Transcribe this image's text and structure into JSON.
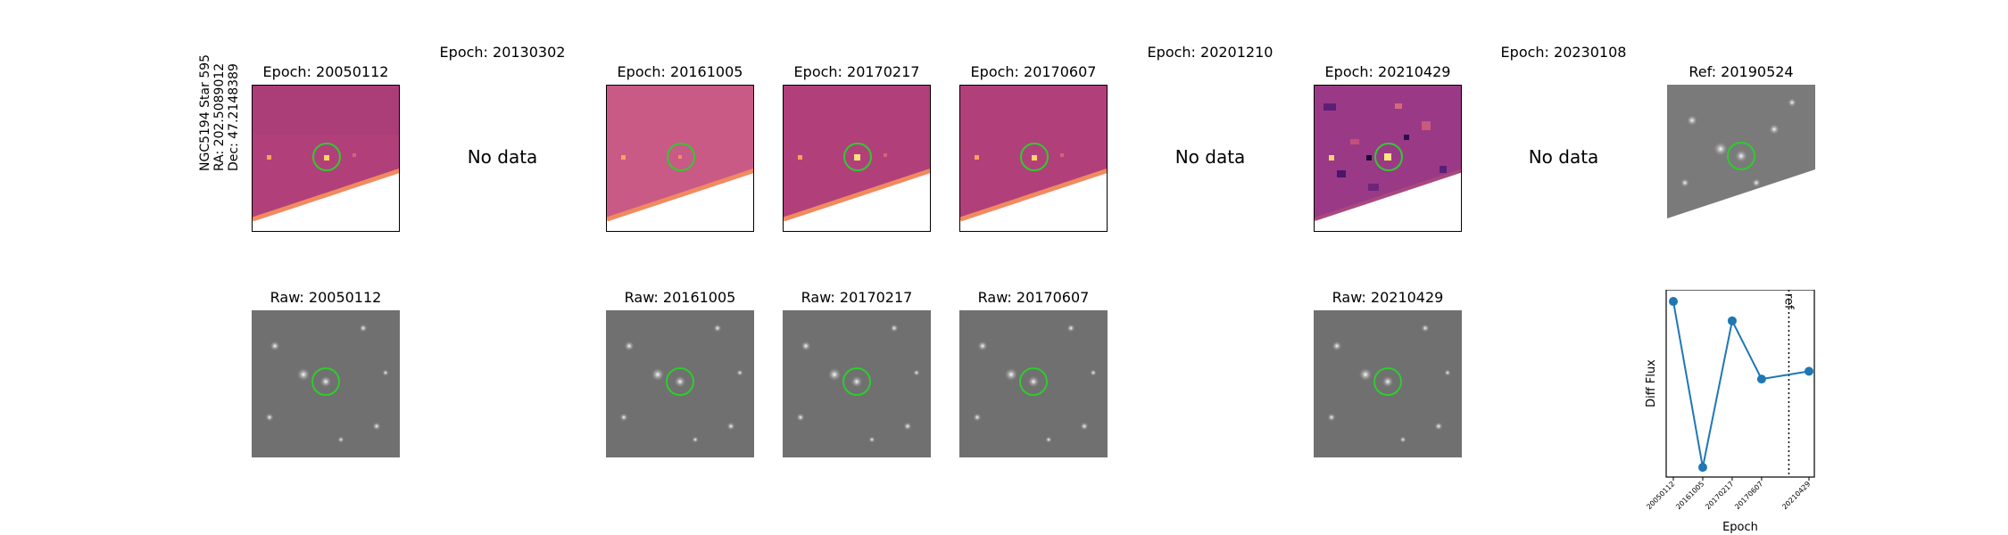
{
  "row_label": [
    "NGC5194 Star 595",
    "RA: 202.5089012",
    "Dec: 47.2148389"
  ],
  "top_row": [
    {
      "title": "Epoch: 20050112",
      "status": "image",
      "variant": "normal"
    },
    {
      "title": "Epoch: 20130302",
      "status": "no-data",
      "message": "No data"
    },
    {
      "title": "Epoch: 20161005",
      "status": "image",
      "variant": "faint"
    },
    {
      "title": "Epoch: 20170217",
      "status": "image",
      "variant": "normal"
    },
    {
      "title": "Epoch: 20170607",
      "status": "image",
      "variant": "normal"
    },
    {
      "title": "Epoch: 20201210",
      "status": "no-data",
      "message": "No data"
    },
    {
      "title": "Epoch: 20210429",
      "status": "image",
      "variant": "noisy"
    },
    {
      "title": "Epoch: 20230108",
      "status": "no-data",
      "message": "No data"
    },
    {
      "title": "Ref: 20190524",
      "status": "reference"
    }
  ],
  "bottom_row": [
    {
      "title": "Raw: 20050112",
      "status": "image"
    },
    {
      "title": "",
      "status": "empty"
    },
    {
      "title": "Raw: 20161005",
      "status": "image"
    },
    {
      "title": "Raw: 20170217",
      "status": "image"
    },
    {
      "title": "Raw: 20170607",
      "status": "image"
    },
    {
      "title": "",
      "status": "empty"
    },
    {
      "title": "Raw: 20210429",
      "status": "image"
    },
    {
      "title": "",
      "status": "empty"
    },
    {
      "title": "",
      "status": "lightcurve"
    }
  ],
  "colors": {
    "diff_bg": "#b1407a",
    "diff_bg_light": "#c95a85",
    "marker": "#2ecc2e",
    "raw_bg": "#707070",
    "series": "#1f77b4"
  },
  "chart_data": {
    "type": "line",
    "title": "",
    "xlabel": "Epoch",
    "ylabel": "Diff Flux",
    "x": [
      "20050112",
      "20161005",
      "20170217",
      "20170607",
      "20210429"
    ],
    "series": [
      {
        "values": [
          0.93,
          -0.78,
          0.73,
          0.13,
          0.21
        ]
      }
    ],
    "ylim": [
      -0.88,
      1.05
    ],
    "reference_line": {
      "label": "ref",
      "position_between": [
        "20170607",
        "20210429"
      ],
      "style": "dotted"
    },
    "grid": false
  }
}
